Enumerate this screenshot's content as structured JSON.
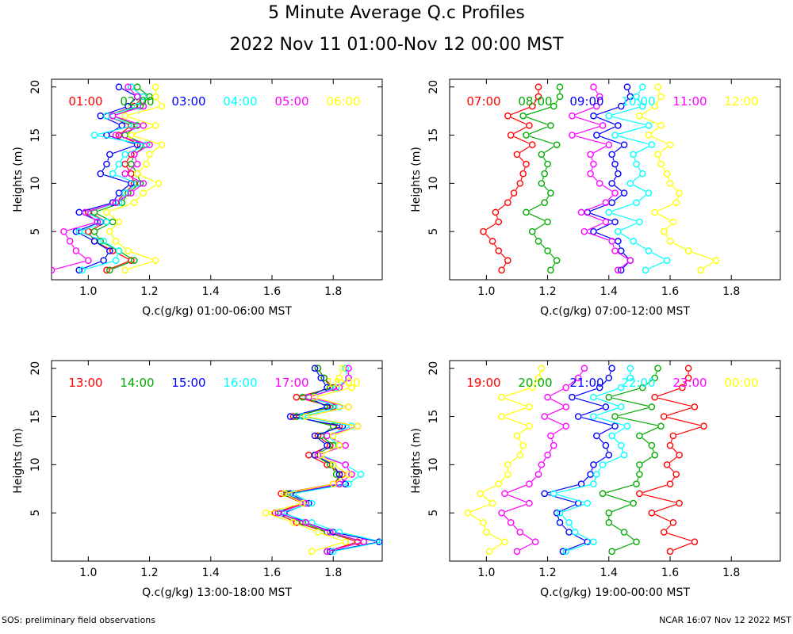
{
  "title": "5 Minute Average Q.c Profiles",
  "subtitle": "2022 Nov 11 01:00-Nov 12 00:00 MST",
  "footer_left": "SOS: preliminary field observations",
  "footer_right": "NCAR 16:07 Nov 12 2022 MST",
  "colors": {
    "red": "#ff0000",
    "green": "#00aa00",
    "blue": "#0000ff",
    "cyan": "#00ffff",
    "magenta": "#ff00ff",
    "yellow": "#ffff00"
  },
  "heights": [
    1,
    2,
    3,
    4,
    5,
    6,
    7,
    8,
    9,
    10,
    11,
    12,
    13,
    14,
    15,
    16,
    17,
    18,
    19,
    20
  ],
  "chart_data": [
    {
      "type": "line",
      "xlabel": "Q.c(g/kg) 01:00-06:00 MST",
      "ylabel": "Heights (m)",
      "xlim": [
        0.88,
        1.96
      ],
      "ylim": [
        0,
        20.8
      ],
      "xticks": [
        "1.0",
        "1.2",
        "1.4",
        "1.6",
        "1.8"
      ],
      "yticks": [
        "5",
        "10",
        "15",
        "20"
      ],
      "series": [
        {
          "name": "01:00",
          "color": "red",
          "x": [
            1.06,
            1.14,
            1.08,
            1.02,
            1.0,
            1.06,
            1.0,
            1.09,
            1.12,
            1.15,
            1.14,
            1.12,
            1.14,
            1.17,
            1.1,
            1.14,
            1.06,
            1.15,
            1.18,
            1.14
          ]
        },
        {
          "name": "02:00",
          "color": "green",
          "x": [
            1.07,
            1.15,
            1.1,
            1.04,
            1.02,
            1.08,
            1.02,
            1.11,
            1.13,
            1.17,
            1.16,
            1.14,
            1.15,
            1.19,
            1.12,
            1.16,
            1.08,
            1.17,
            1.2,
            1.16
          ]
        },
        {
          "name": "03:00",
          "color": "blue",
          "x": [
            0.97,
            1.05,
            1.07,
            1.02,
            0.96,
            1.04,
            0.97,
            1.08,
            1.1,
            1.14,
            1.04,
            1.06,
            1.07,
            1.16,
            1.06,
            1.11,
            1.04,
            1.13,
            1.16,
            1.1
          ]
        },
        {
          "name": "04:00",
          "color": "cyan",
          "x": [
            0.98,
            1.09,
            1.1,
            1.05,
            0.97,
            1.06,
            0.99,
            1.1,
            1.12,
            1.16,
            1.08,
            1.1,
            1.12,
            1.19,
            1.02,
            1.15,
            1.06,
            1.16,
            1.18,
            1.14
          ]
        },
        {
          "name": "05:00",
          "color": "magenta",
          "x": [
            0.88,
            1.0,
            0.96,
            0.94,
            0.92,
            1.03,
            0.99,
            1.09,
            1.14,
            1.18,
            1.12,
            1.16,
            1.15,
            1.2,
            1.09,
            1.18,
            1.08,
            1.18,
            1.16,
            1.13
          ]
        },
        {
          "name": "06:00",
          "color": "yellow",
          "x": [
            1.12,
            1.22,
            1.13,
            1.09,
            1.07,
            1.1,
            1.06,
            1.15,
            1.18,
            1.23,
            1.16,
            1.19,
            1.2,
            1.24,
            1.14,
            1.22,
            1.12,
            1.24,
            1.22,
            1.22
          ]
        }
      ]
    },
    {
      "type": "line",
      "xlabel": "Q.c(g/kg) 07:00-12:00 MST",
      "ylabel": "Heights (m)",
      "xlim": [
        0.88,
        1.96
      ],
      "ylim": [
        0,
        20.8
      ],
      "xticks": [
        "1.0",
        "1.2",
        "1.4",
        "1.6",
        "1.8"
      ],
      "yticks": [
        "5",
        "10",
        "15",
        "20"
      ],
      "series": [
        {
          "name": "07:00",
          "color": "red",
          "x": [
            1.05,
            1.07,
            1.04,
            1.02,
            0.99,
            1.04,
            1.03,
            1.07,
            1.09,
            1.11,
            1.12,
            1.13,
            1.1,
            1.15,
            1.08,
            1.14,
            1.07,
            1.15,
            1.17,
            1.17
          ]
        },
        {
          "name": "08:00",
          "color": "green",
          "x": [
            1.21,
            1.23,
            1.2,
            1.17,
            1.15,
            1.2,
            1.13,
            1.19,
            1.21,
            1.18,
            1.19,
            1.2,
            1.18,
            1.23,
            1.13,
            1.21,
            1.12,
            1.22,
            1.24,
            1.24
          ]
        },
        {
          "name": "09:00",
          "color": "blue",
          "x": [
            1.44,
            1.47,
            1.44,
            1.43,
            1.35,
            1.42,
            1.33,
            1.41,
            1.45,
            1.41,
            1.43,
            1.42,
            1.41,
            1.45,
            1.36,
            1.43,
            1.35,
            1.44,
            1.47,
            1.46
          ]
        },
        {
          "name": "10:00",
          "color": "cyan",
          "x": [
            1.52,
            1.59,
            1.53,
            1.48,
            1.43,
            1.5,
            1.4,
            1.49,
            1.53,
            1.47,
            1.51,
            1.49,
            1.48,
            1.54,
            1.42,
            1.53,
            1.4,
            1.51,
            1.49,
            1.51
          ]
        },
        {
          "name": "11:00",
          "color": "magenta",
          "x": [
            1.43,
            1.47,
            1.42,
            1.41,
            1.32,
            1.39,
            1.31,
            1.39,
            1.42,
            1.37,
            1.34,
            1.35,
            1.34,
            1.4,
            1.28,
            1.38,
            1.28,
            1.36,
            1.37,
            1.35
          ]
        },
        {
          "name": "12:00",
          "color": "yellow",
          "x": [
            1.7,
            1.75,
            1.66,
            1.6,
            1.58,
            1.61,
            1.55,
            1.62,
            1.63,
            1.6,
            1.59,
            1.57,
            1.56,
            1.6,
            1.53,
            1.57,
            1.5,
            1.55,
            1.57,
            1.56
          ]
        }
      ]
    },
    {
      "type": "line",
      "xlabel": "Q.c(g/kg) 13:00-18:00 MST",
      "ylabel": "Heights (m)",
      "xlim": [
        0.88,
        1.96
      ],
      "ylim": [
        0,
        20.8
      ],
      "xticks": [
        "1.0",
        "1.2",
        "1.4",
        "1.6",
        "1.8"
      ],
      "yticks": [
        "5",
        "10",
        "15",
        "20"
      ],
      "series": [
        {
          "name": "13:00",
          "color": "red",
          "x": [
            1.78,
            1.88,
            1.78,
            1.68,
            1.61,
            1.7,
            1.63,
            1.8,
            1.83,
            1.78,
            1.72,
            1.79,
            1.75,
            1.82,
            1.67,
            1.8,
            1.68,
            1.8,
            1.77,
            1.75
          ]
        },
        {
          "name": "14:00",
          "color": "green",
          "x": [
            1.78,
            1.9,
            1.78,
            1.7,
            1.62,
            1.71,
            1.65,
            1.82,
            1.81,
            1.79,
            1.74,
            1.8,
            1.76,
            1.8,
            1.68,
            1.79,
            1.7,
            1.79,
            1.77,
            1.75
          ]
        },
        {
          "name": "15:00",
          "color": "blue",
          "x": [
            1.79,
            1.95,
            1.8,
            1.71,
            1.64,
            1.72,
            1.66,
            1.84,
            1.82,
            1.8,
            1.74,
            1.78,
            1.74,
            1.83,
            1.66,
            1.78,
            1.72,
            1.78,
            1.76,
            1.74
          ]
        },
        {
          "name": "16:00",
          "color": "cyan",
          "x": [
            1.8,
            1.96,
            1.82,
            1.73,
            1.63,
            1.73,
            1.67,
            1.85,
            1.89,
            1.84,
            1.76,
            1.82,
            1.78,
            1.86,
            1.7,
            1.82,
            1.72,
            1.81,
            1.85,
            1.84
          ]
        },
        {
          "name": "17:00",
          "color": "magenta",
          "x": [
            1.78,
            1.9,
            1.79,
            1.71,
            1.62,
            1.71,
            1.64,
            1.82,
            1.86,
            1.84,
            1.75,
            1.84,
            1.78,
            1.88,
            1.71,
            1.85,
            1.72,
            1.82,
            1.85,
            1.85
          ]
        },
        {
          "name": "18:00",
          "color": "yellow",
          "x": [
            1.73,
            1.84,
            1.75,
            1.67,
            1.58,
            1.7,
            1.64,
            1.8,
            1.85,
            1.8,
            1.76,
            1.82,
            1.8,
            1.88,
            1.71,
            1.85,
            1.74,
            1.86,
            1.82,
            1.83
          ]
        }
      ]
    },
    {
      "type": "line",
      "xlabel": "Q.c(g/kg) 19:00-00:00 MST",
      "ylabel": "Heights (m)",
      "xlim": [
        0.88,
        1.96
      ],
      "ylim": [
        0,
        20.8
      ],
      "xticks": [
        "1.0",
        "1.2",
        "1.4",
        "1.6",
        "1.8"
      ],
      "yticks": [
        "5",
        "10",
        "15",
        "20"
      ],
      "series": [
        {
          "name": "19:00",
          "color": "red",
          "x": [
            1.6,
            1.68,
            1.58,
            1.61,
            1.54,
            1.63,
            1.5,
            1.6,
            1.62,
            1.59,
            1.63,
            1.6,
            1.61,
            1.71,
            1.58,
            1.68,
            1.55,
            1.64,
            1.66,
            1.66
          ]
        },
        {
          "name": "20:00",
          "color": "green",
          "x": [
            1.41,
            1.49,
            1.45,
            1.4,
            1.4,
            1.48,
            1.38,
            1.49,
            1.5,
            1.5,
            1.55,
            1.54,
            1.5,
            1.57,
            1.42,
            1.54,
            1.4,
            1.51,
            1.55,
            1.56
          ]
        },
        {
          "name": "21:00",
          "color": "blue",
          "x": [
            1.25,
            1.33,
            1.27,
            1.24,
            1.23,
            1.3,
            1.19,
            1.31,
            1.34,
            1.35,
            1.4,
            1.39,
            1.36,
            1.42,
            1.3,
            1.39,
            1.28,
            1.37,
            1.4,
            1.41
          ]
        },
        {
          "name": "22:00",
          "color": "cyan",
          "x": [
            1.26,
            1.35,
            1.29,
            1.27,
            1.24,
            1.33,
            1.22,
            1.35,
            1.36,
            1.38,
            1.45,
            1.44,
            1.41,
            1.46,
            1.35,
            1.44,
            1.35,
            1.44,
            1.47,
            1.47
          ]
        },
        {
          "name": "23:00",
          "color": "magenta",
          "x": [
            1.1,
            1.16,
            1.11,
            1.08,
            1.05,
            1.14,
            1.06,
            1.14,
            1.17,
            1.18,
            1.2,
            1.22,
            1.21,
            1.26,
            1.19,
            1.26,
            1.2,
            1.26,
            1.3,
            1.32
          ]
        },
        {
          "name": "00:00",
          "color": "yellow",
          "x": [
            1.01,
            1.06,
            1.0,
            0.99,
            0.94,
            1.02,
            0.98,
            1.04,
            1.07,
            1.07,
            1.11,
            1.12,
            1.1,
            1.14,
            1.05,
            1.14,
            1.05,
            1.15,
            1.17,
            1.18
          ]
        }
      ]
    }
  ]
}
